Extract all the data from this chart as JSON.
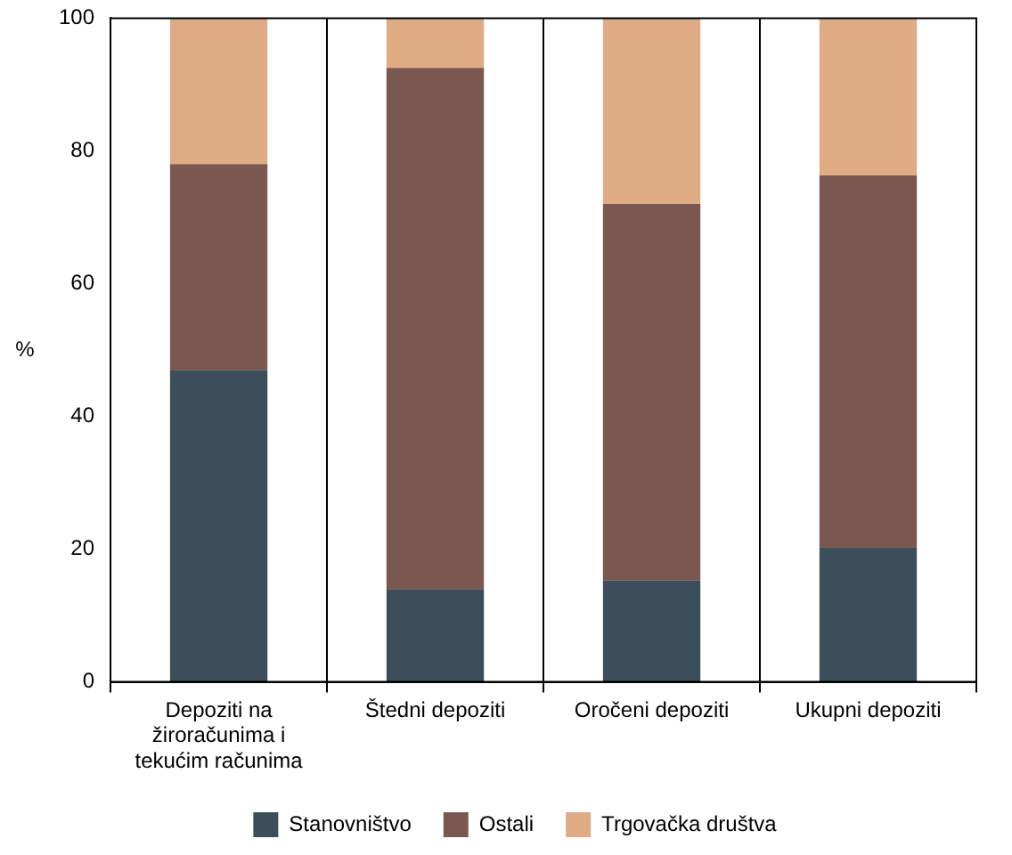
{
  "chart_data": {
    "type": "bar",
    "stacked": true,
    "ylabel": "%",
    "categories": [
      "Depoziti na žiroračunima i tekućim računima",
      "Štedni depoziti",
      "Oročeni depoziti",
      "Ukupni depoziti"
    ],
    "series": [
      {
        "name": "Stanovništvo",
        "color": "#3b4e5a",
        "values": [
          47,
          14,
          15.3,
          20.3
        ]
      },
      {
        "name": "Ostali",
        "color": "#7a5750",
        "values": [
          31,
          78.5,
          56.7,
          56
        ]
      },
      {
        "name": "Trgovačka društva",
        "color": "#deab85",
        "values": [
          22,
          7.5,
          28,
          23.7
        ]
      }
    ],
    "ylim": [
      0,
      100
    ],
    "yticks": [
      0,
      20,
      40,
      60,
      80,
      100
    ],
    "grid": "x",
    "legend": "bottom"
  }
}
